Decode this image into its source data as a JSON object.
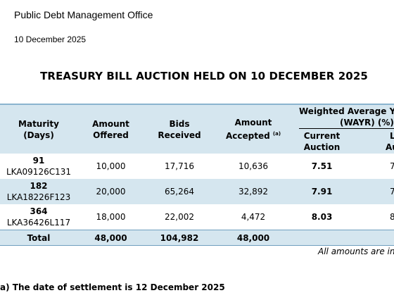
{
  "header": {
    "office": "Public Debt Management Office",
    "date": "10 December 2025"
  },
  "title": "TREASURY BILL AUCTION HELD ON 10 DECEMBER 2025",
  "table": {
    "col_maturity_1": "Maturity",
    "col_maturity_2": "(Days)",
    "col_offered_1": "Amount",
    "col_offered_2": "Offered",
    "col_bids_1": "Bids",
    "col_bids_2": "Received",
    "col_accepted_1": "Amount",
    "col_accepted_2": "Accepted",
    "col_accepted_note": "(a)",
    "wayr_1": "Weighted Average Yie",
    "wayr_2": "(WAYR) (%)",
    "current_1": "Current",
    "current_2": "Auction",
    "last_1": "L",
    "last_2": "Au",
    "rows": [
      {
        "days": "91",
        "code": "LKA09126C131",
        "offered": "10,000",
        "bids": "17,716",
        "accepted": "10,636",
        "current": "7.51",
        "last": "7"
      },
      {
        "days": "182",
        "code": "LKA18226F123",
        "offered": "20,000",
        "bids": "65,264",
        "accepted": "32,892",
        "current": "7.91",
        "last": "7"
      },
      {
        "days": "364",
        "code": "LKA36426L117",
        "offered": "18,000",
        "bids": "22,002",
        "accepted": "4,472",
        "current": "8.03",
        "last": "8"
      }
    ],
    "total": {
      "label": "Total",
      "offered": "48,000",
      "bids": "104,982",
      "accepted": "48,000"
    }
  },
  "amounts_note": "All amounts are in",
  "footnote": "a) The date of settlement is 12 December 2025"
}
